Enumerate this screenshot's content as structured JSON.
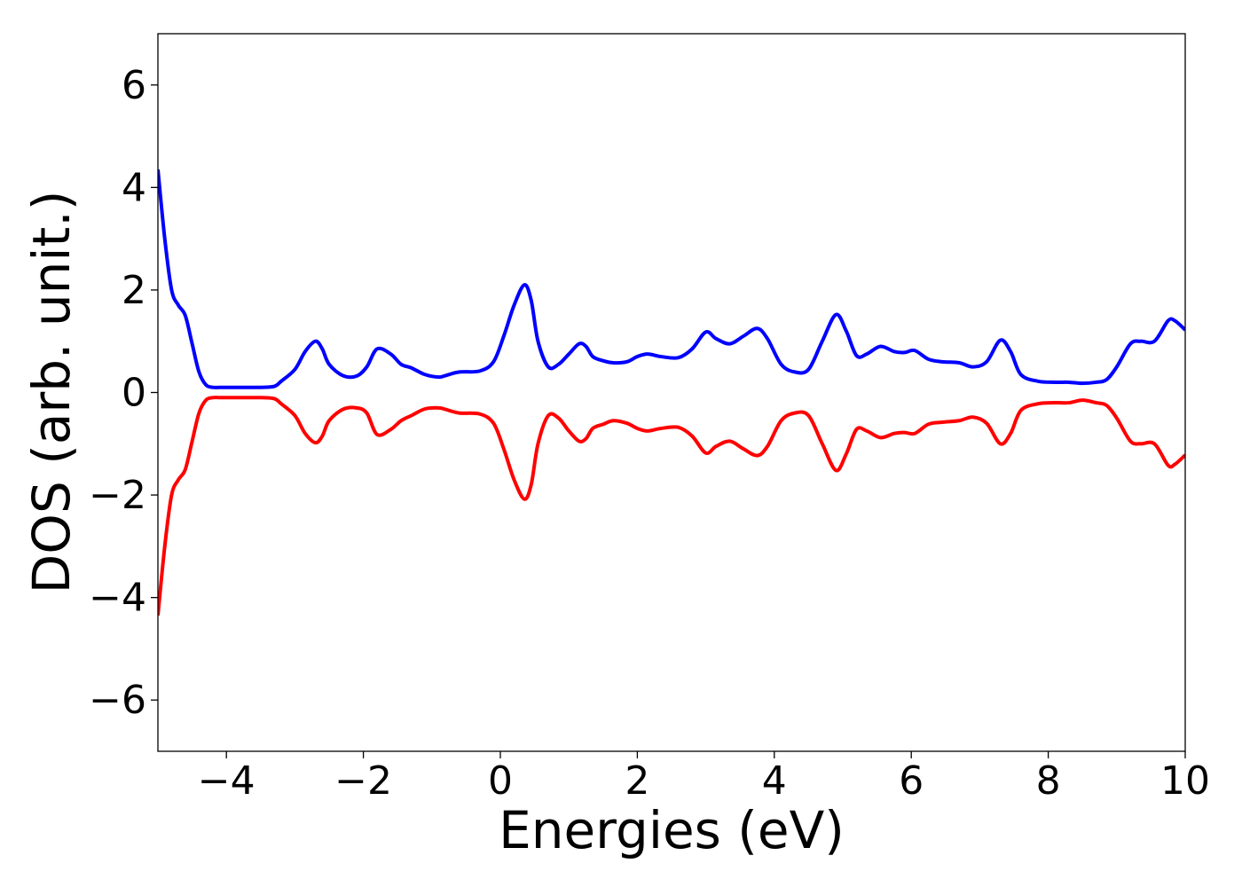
{
  "chart_data": {
    "type": "line",
    "title": "",
    "xlabel": "Energies (eV)",
    "ylabel": "DOS (arb. unit.)",
    "xlim": [
      -5,
      10
    ],
    "ylim": [
      -7,
      7
    ],
    "xticks": [
      -4,
      -2,
      0,
      2,
      4,
      6,
      8,
      10
    ],
    "yticks": [
      -6,
      -4,
      -2,
      0,
      2,
      4,
      6
    ],
    "xtick_labels": [
      "−4",
      "−2",
      "0",
      "2",
      "4",
      "6",
      "8",
      "10"
    ],
    "ytick_labels": [
      "−6",
      "−4",
      "−2",
      "0",
      "2",
      "4",
      "6"
    ],
    "grid": false,
    "legend": "none",
    "series": [
      {
        "color": "#0000ff",
        "x": [
          -5.0,
          -4.9,
          -4.8,
          -4.7,
          -4.6,
          -4.5,
          -4.4,
          -4.3,
          -4.2,
          -4.1,
          -4.0,
          -3.5,
          -3.3,
          -3.2,
          -3.0,
          -2.85,
          -2.7,
          -2.6,
          -2.5,
          -2.3,
          -2.1,
          -1.95,
          -1.8,
          -1.6,
          -1.45,
          -1.3,
          -1.1,
          -0.9,
          -0.8,
          -0.6,
          -0.3,
          -0.1,
          0.05,
          0.2,
          0.35,
          0.45,
          0.55,
          0.7,
          0.85,
          1.0,
          1.15,
          1.25,
          1.35,
          1.5,
          1.65,
          1.85,
          2.0,
          2.15,
          2.35,
          2.6,
          2.8,
          3.0,
          3.15,
          3.35,
          3.55,
          3.75,
          3.9,
          4.1,
          4.3,
          4.5,
          4.7,
          4.9,
          5.05,
          5.2,
          5.35,
          5.55,
          5.75,
          5.9,
          6.05,
          6.25,
          6.45,
          6.7,
          6.9,
          7.1,
          7.3,
          7.45,
          7.6,
          7.85,
          8.1,
          8.3,
          8.5,
          8.7,
          8.85,
          9.0,
          9.2,
          9.35,
          9.55,
          9.75,
          9.85,
          10.0
        ],
        "y": [
          4.35,
          3.0,
          2.0,
          1.7,
          1.5,
          0.95,
          0.4,
          0.15,
          0.1,
          0.1,
          0.1,
          0.1,
          0.12,
          0.22,
          0.45,
          0.8,
          1.0,
          0.85,
          0.55,
          0.33,
          0.32,
          0.5,
          0.85,
          0.75,
          0.55,
          0.48,
          0.35,
          0.3,
          0.33,
          0.4,
          0.42,
          0.6,
          1.1,
          1.7,
          2.1,
          1.8,
          1.0,
          0.5,
          0.55,
          0.75,
          0.95,
          0.9,
          0.7,
          0.62,
          0.58,
          0.6,
          0.7,
          0.75,
          0.7,
          0.68,
          0.85,
          1.18,
          1.05,
          0.95,
          1.1,
          1.25,
          1.05,
          0.55,
          0.4,
          0.45,
          1.0,
          1.52,
          1.2,
          0.72,
          0.75,
          0.9,
          0.8,
          0.78,
          0.82,
          0.65,
          0.6,
          0.58,
          0.5,
          0.6,
          1.02,
          0.8,
          0.35,
          0.22,
          0.2,
          0.2,
          0.18,
          0.2,
          0.25,
          0.5,
          0.95,
          1.0,
          1.0,
          1.4,
          1.4,
          1.22
        ]
      },
      {
        "color": "#ff0000",
        "x": [
          -5.0,
          -4.9,
          -4.8,
          -4.7,
          -4.6,
          -4.5,
          -4.4,
          -4.3,
          -4.2,
          -4.1,
          -4.0,
          -3.5,
          -3.3,
          -3.2,
          -3.0,
          -2.85,
          -2.7,
          -2.6,
          -2.5,
          -2.3,
          -2.1,
          -1.95,
          -1.8,
          -1.6,
          -1.45,
          -1.3,
          -1.1,
          -0.9,
          -0.8,
          -0.6,
          -0.3,
          -0.1,
          0.05,
          0.2,
          0.35,
          0.45,
          0.55,
          0.7,
          0.85,
          1.0,
          1.15,
          1.25,
          1.35,
          1.5,
          1.65,
          1.85,
          2.0,
          2.15,
          2.35,
          2.6,
          2.8,
          3.0,
          3.15,
          3.35,
          3.55,
          3.75,
          3.9,
          4.1,
          4.3,
          4.5,
          4.7,
          4.9,
          5.05,
          5.2,
          5.35,
          5.55,
          5.75,
          5.9,
          6.05,
          6.25,
          6.45,
          6.7,
          6.9,
          7.1,
          7.3,
          7.45,
          7.6,
          7.85,
          8.1,
          8.3,
          8.5,
          8.7,
          8.85,
          9.0,
          9.2,
          9.35,
          9.55,
          9.75,
          9.85,
          10.0
        ],
        "y": [
          -4.35,
          -3.0,
          -2.0,
          -1.7,
          -1.5,
          -0.95,
          -0.4,
          -0.15,
          -0.1,
          -0.1,
          -0.1,
          -0.1,
          -0.12,
          -0.22,
          -0.45,
          -0.8,
          -0.98,
          -0.85,
          -0.55,
          -0.33,
          -0.3,
          -0.4,
          -0.82,
          -0.72,
          -0.55,
          -0.45,
          -0.32,
          -0.3,
          -0.33,
          -0.4,
          -0.42,
          -0.6,
          -1.1,
          -1.7,
          -2.08,
          -1.8,
          -1.0,
          -0.45,
          -0.5,
          -0.75,
          -0.95,
          -0.9,
          -0.7,
          -0.62,
          -0.55,
          -0.6,
          -0.7,
          -0.75,
          -0.7,
          -0.68,
          -0.85,
          -1.18,
          -1.05,
          -0.95,
          -1.1,
          -1.23,
          -1.05,
          -0.55,
          -0.4,
          -0.45,
          -1.0,
          -1.52,
          -1.2,
          -0.72,
          -0.75,
          -0.88,
          -0.8,
          -0.78,
          -0.8,
          -0.62,
          -0.58,
          -0.55,
          -0.48,
          -0.6,
          -1.0,
          -0.8,
          -0.35,
          -0.22,
          -0.2,
          -0.2,
          -0.15,
          -0.2,
          -0.25,
          -0.5,
          -0.95,
          -1.0,
          -1.0,
          -1.42,
          -1.4,
          -1.22
        ]
      }
    ]
  }
}
